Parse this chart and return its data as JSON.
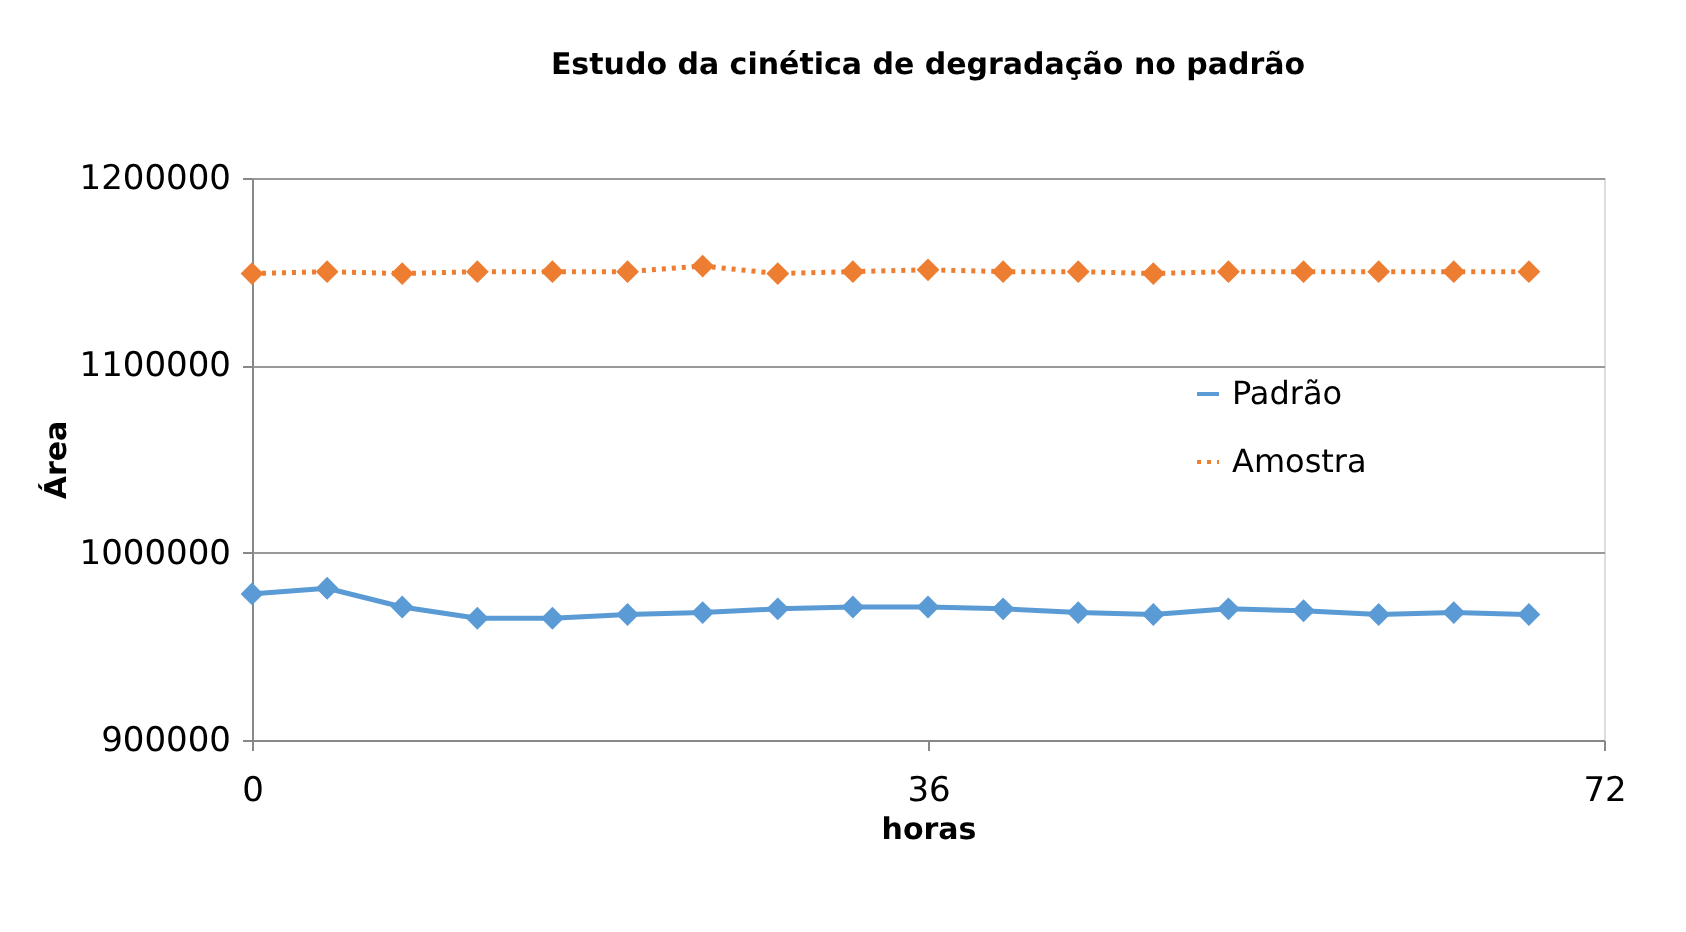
{
  "chart_data": {
    "type": "line",
    "title": "Estudo da cinética de degradação no padrão",
    "xlabel": "horas",
    "ylabel": "Área",
    "x": [
      0,
      4,
      8,
      12,
      16,
      20,
      24,
      28,
      32,
      36,
      40,
      44,
      48,
      52,
      56,
      60,
      64,
      68
    ],
    "series": [
      {
        "name": "Padrão",
        "color": "#5b9bd5",
        "line_style": "solid",
        "values": [
          978000,
          981000,
          971000,
          965000,
          965000,
          967000,
          968000,
          970000,
          971000,
          971000,
          970000,
          968000,
          967000,
          970000,
          969000,
          967000,
          968000,
          967000
        ]
      },
      {
        "name": "Amostra",
        "color": "#ed7d31",
        "line_style": "dotted",
        "values": [
          1149000,
          1150000,
          1149000,
          1150000,
          1150000,
          1150000,
          1153000,
          1149000,
          1150000,
          1151000,
          1150000,
          1150000,
          1149000,
          1150000,
          1150000,
          1150000,
          1150000,
          1150000
        ]
      }
    ],
    "xlim": [
      0,
      72
    ],
    "xticks": [
      0,
      36,
      72
    ],
    "ylim": [
      900000,
      1200000
    ],
    "yticks": [
      900000,
      1000000,
      1100000,
      1200000
    ],
    "grid": "y",
    "legend": "right",
    "marker": "diamond"
  }
}
